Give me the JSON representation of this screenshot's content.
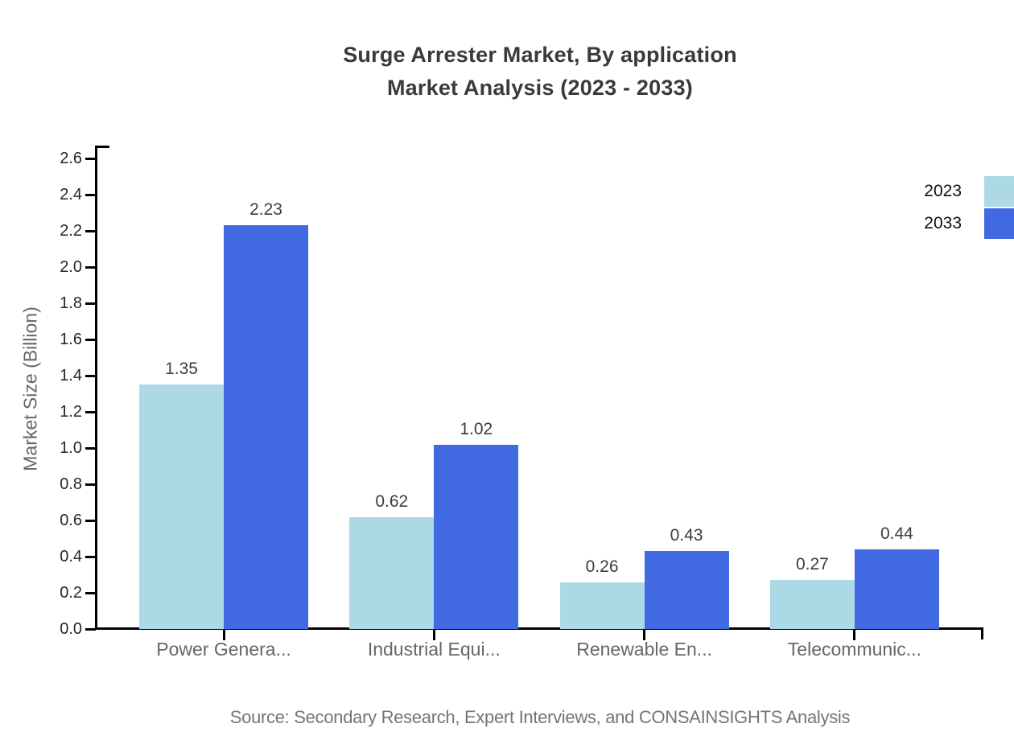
{
  "title": {
    "line1": "Surge Arrester Market, By application",
    "line2": "Market Analysis (2023 - 2033)"
  },
  "source": "Source: Secondary Research, Expert Interviews, and CONSAINSIGHTS Analysis",
  "chart_data": {
    "type": "bar",
    "title": "Surge Arrester Market, By application Market Analysis (2023 - 2033)",
    "categories": [
      "Power Genera...",
      "Industrial Equi...",
      "Renewable En...",
      "Telecommunic..."
    ],
    "series": [
      {
        "name": "2023",
        "color": "#ADD8E6",
        "values": [
          1.35,
          0.62,
          0.26,
          0.27
        ]
      },
      {
        "name": "2033",
        "color": "#4169E1",
        "values": [
          2.23,
          1.02,
          0.43,
          0.44
        ]
      }
    ],
    "xlabel": "",
    "ylabel": "Market Size (Billion)",
    "ylim": [
      0,
      2.6
    ],
    "ytick_step": 0.2,
    "ytick_decimals": 1,
    "grid": false,
    "value_labels": true,
    "legend_position": "top-right"
  },
  "colors": {
    "series_2023": "#ADD8E6",
    "series_2033": "#4169E1",
    "axis": "#000000",
    "title_text": "#3A3A3A",
    "value_label_text": "#3D3D3D",
    "tick_label_text": "#262626",
    "category_text": "#666666",
    "y_axis_title_text": "#666666",
    "legend_text": "#111111",
    "source_text": "#757575",
    "background": "#FFFFFF"
  }
}
